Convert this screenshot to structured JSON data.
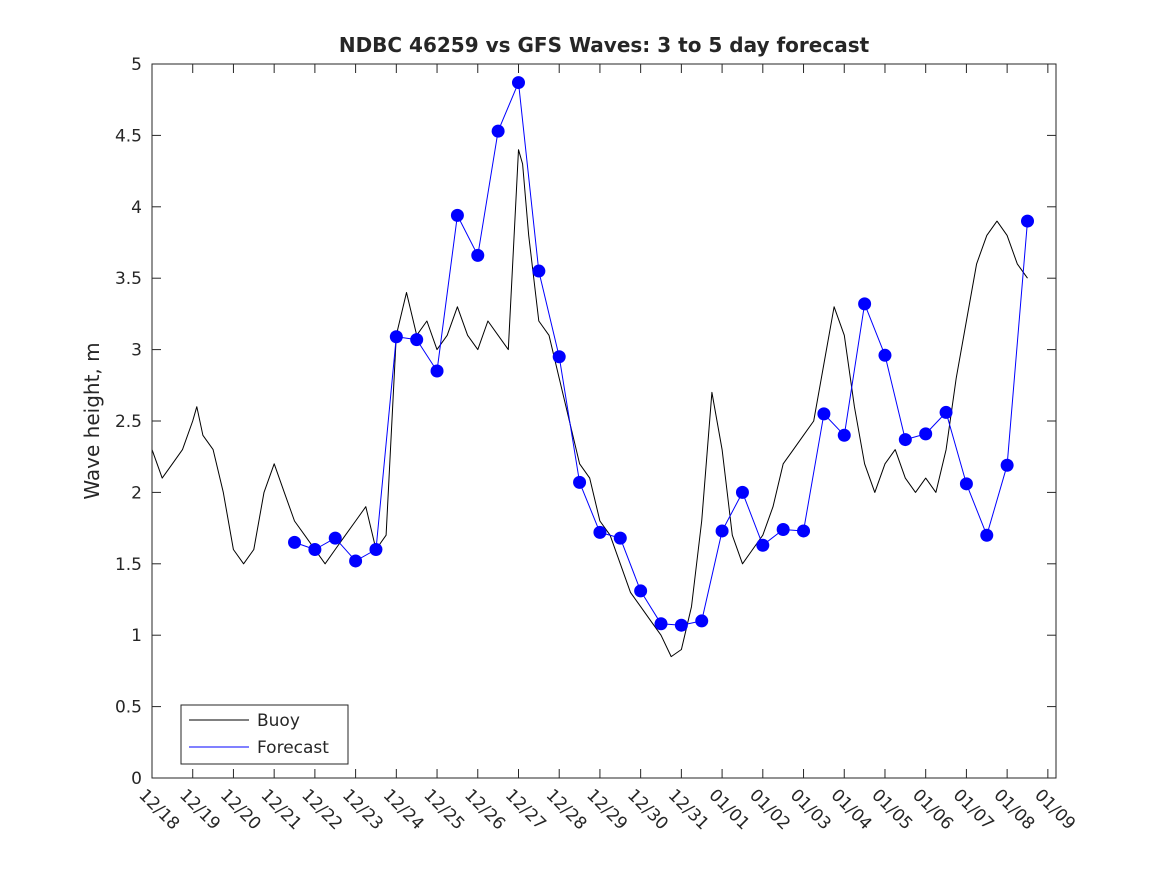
{
  "chart_data": {
    "type": "line",
    "title": "NDBC 46259 vs GFS Waves: 3 to 5 day forecast",
    "xlabel": "",
    "ylabel": "Wave height, m",
    "xlim": [
      0,
      22.2
    ],
    "ylim": [
      0,
      5
    ],
    "grid": false,
    "legend_position": "bottom-left",
    "x_tick_labels": [
      "12/18",
      "12/19",
      "12/20",
      "12/21",
      "12/22",
      "12/23",
      "12/24",
      "12/25",
      "12/26",
      "12/27",
      "12/28",
      "12/29",
      "12/30",
      "12/31",
      "01/01",
      "01/02",
      "01/03",
      "01/04",
      "01/05",
      "01/06",
      "01/07",
      "01/08",
      "01/09"
    ],
    "y_ticks": [
      0,
      0.5,
      1,
      1.5,
      2,
      2.5,
      3,
      3.5,
      4,
      4.5,
      5
    ],
    "y_tick_labels": [
      "0",
      "0.5",
      "1",
      "1.5",
      "2",
      "2.5",
      "3",
      "3.5",
      "4",
      "4.5",
      "5"
    ],
    "series": [
      {
        "name": "Buoy",
        "color": "#000000",
        "x": [
          0,
          0.25,
          0.5,
          0.75,
          1,
          1.1,
          1.25,
          1.5,
          1.75,
          2,
          2.25,
          2.5,
          2.75,
          3,
          3.25,
          3.5,
          3.75,
          4,
          4.25,
          4.5,
          4.75,
          5,
          5.25,
          5.5,
          5.75,
          6,
          6.25,
          6.5,
          6.75,
          7,
          7.25,
          7.5,
          7.75,
          8,
          8.25,
          8.5,
          8.75,
          9,
          9.1,
          9.25,
          9.5,
          9.75,
          10,
          10.25,
          10.5,
          10.75,
          11,
          11.25,
          11.5,
          11.75,
          12,
          12.25,
          12.5,
          12.75,
          13,
          13.25,
          13.5,
          13.75,
          14,
          14.25,
          14.5,
          14.75,
          15,
          15.25,
          15.5,
          15.75,
          16,
          16.25,
          16.5,
          16.75,
          17,
          17.25,
          17.5,
          17.75,
          18,
          18.25,
          18.5,
          18.75,
          19,
          19.25,
          19.5,
          19.75,
          20,
          20.25,
          20.5,
          20.75,
          21,
          21.25,
          21.5
        ],
        "y": [
          2.3,
          2.1,
          2.2,
          2.3,
          2.5,
          2.6,
          2.4,
          2.3,
          2.0,
          1.6,
          1.5,
          1.6,
          2.0,
          2.2,
          2.0,
          1.8,
          1.7,
          1.6,
          1.5,
          1.6,
          1.7,
          1.8,
          1.9,
          1.6,
          1.7,
          3.1,
          3.4,
          3.1,
          3.2,
          3.0,
          3.1,
          3.3,
          3.1,
          3.0,
          3.2,
          3.1,
          3.0,
          4.4,
          4.3,
          3.8,
          3.2,
          3.1,
          2.8,
          2.5,
          2.2,
          2.1,
          1.8,
          1.7,
          1.5,
          1.3,
          1.2,
          1.1,
          1.0,
          0.85,
          0.9,
          1.2,
          1.8,
          2.7,
          2.3,
          1.7,
          1.5,
          1.6,
          1.7,
          1.9,
          2.2,
          2.3,
          2.4,
          2.5,
          2.9,
          3.3,
          3.1,
          2.6,
          2.2,
          2.0,
          2.2,
          2.3,
          2.1,
          2.0,
          2.1,
          2.0,
          2.3,
          2.8,
          3.2,
          3.6,
          3.8,
          3.9,
          3.8,
          3.6,
          3.5
        ]
      },
      {
        "name": "Forecast",
        "color": "#0000ff",
        "x": [
          3.5,
          4.0,
          4.5,
          5.0,
          5.5,
          6.0,
          6.5,
          7.0,
          7.5,
          8.0,
          8.5,
          9.0,
          9.5,
          10.0,
          10.5,
          11.0,
          11.5,
          12.0,
          12.5,
          13.0,
          13.5,
          14.0,
          14.5,
          15.0,
          15.5,
          16.0,
          16.5,
          17.0,
          17.5,
          18.0,
          18.5,
          19.0,
          19.5,
          20.0,
          20.5,
          21.0,
          21.5
        ],
        "y": [
          1.65,
          1.6,
          1.68,
          1.52,
          1.6,
          3.09,
          3.07,
          2.85,
          3.94,
          3.66,
          4.53,
          4.87,
          3.55,
          2.95,
          2.07,
          1.72,
          1.68,
          1.31,
          1.08,
          1.07,
          1.1,
          1.73,
          2.0,
          1.63,
          1.74,
          1.73,
          2.55,
          2.4,
          3.32,
          2.96,
          2.37,
          2.41,
          2.56,
          2.06,
          1.7,
          2.19,
          3.9
        ]
      }
    ],
    "markers": {
      "x": [
        3.5,
        4.0,
        4.5,
        5.0,
        5.5,
        6.0,
        6.5,
        7.0,
        7.5,
        8.0,
        8.5,
        9.0,
        9.5,
        10.0,
        10.5,
        11.0,
        11.5,
        12.0,
        12.5,
        13.0,
        13.5,
        14.0,
        14.5,
        15.0,
        15.5,
        16.0,
        16.5,
        17.0,
        17.5,
        18.0,
        18.5,
        19.0,
        19.5,
        20.0,
        20.5,
        21.0,
        21.5
      ],
      "y": [
        1.65,
        1.6,
        1.68,
        1.52,
        1.6,
        3.09,
        3.07,
        2.85,
        3.94,
        3.66,
        4.53,
        4.87,
        3.55,
        2.95,
        2.07,
        1.72,
        1.68,
        1.31,
        1.08,
        1.07,
        1.1,
        1.73,
        2.0,
        1.63,
        1.74,
        1.73,
        2.55,
        2.4,
        3.32,
        2.96,
        2.37,
        2.41,
        2.56,
        2.06,
        1.7,
        2.19,
        3.9
      ]
    }
  }
}
